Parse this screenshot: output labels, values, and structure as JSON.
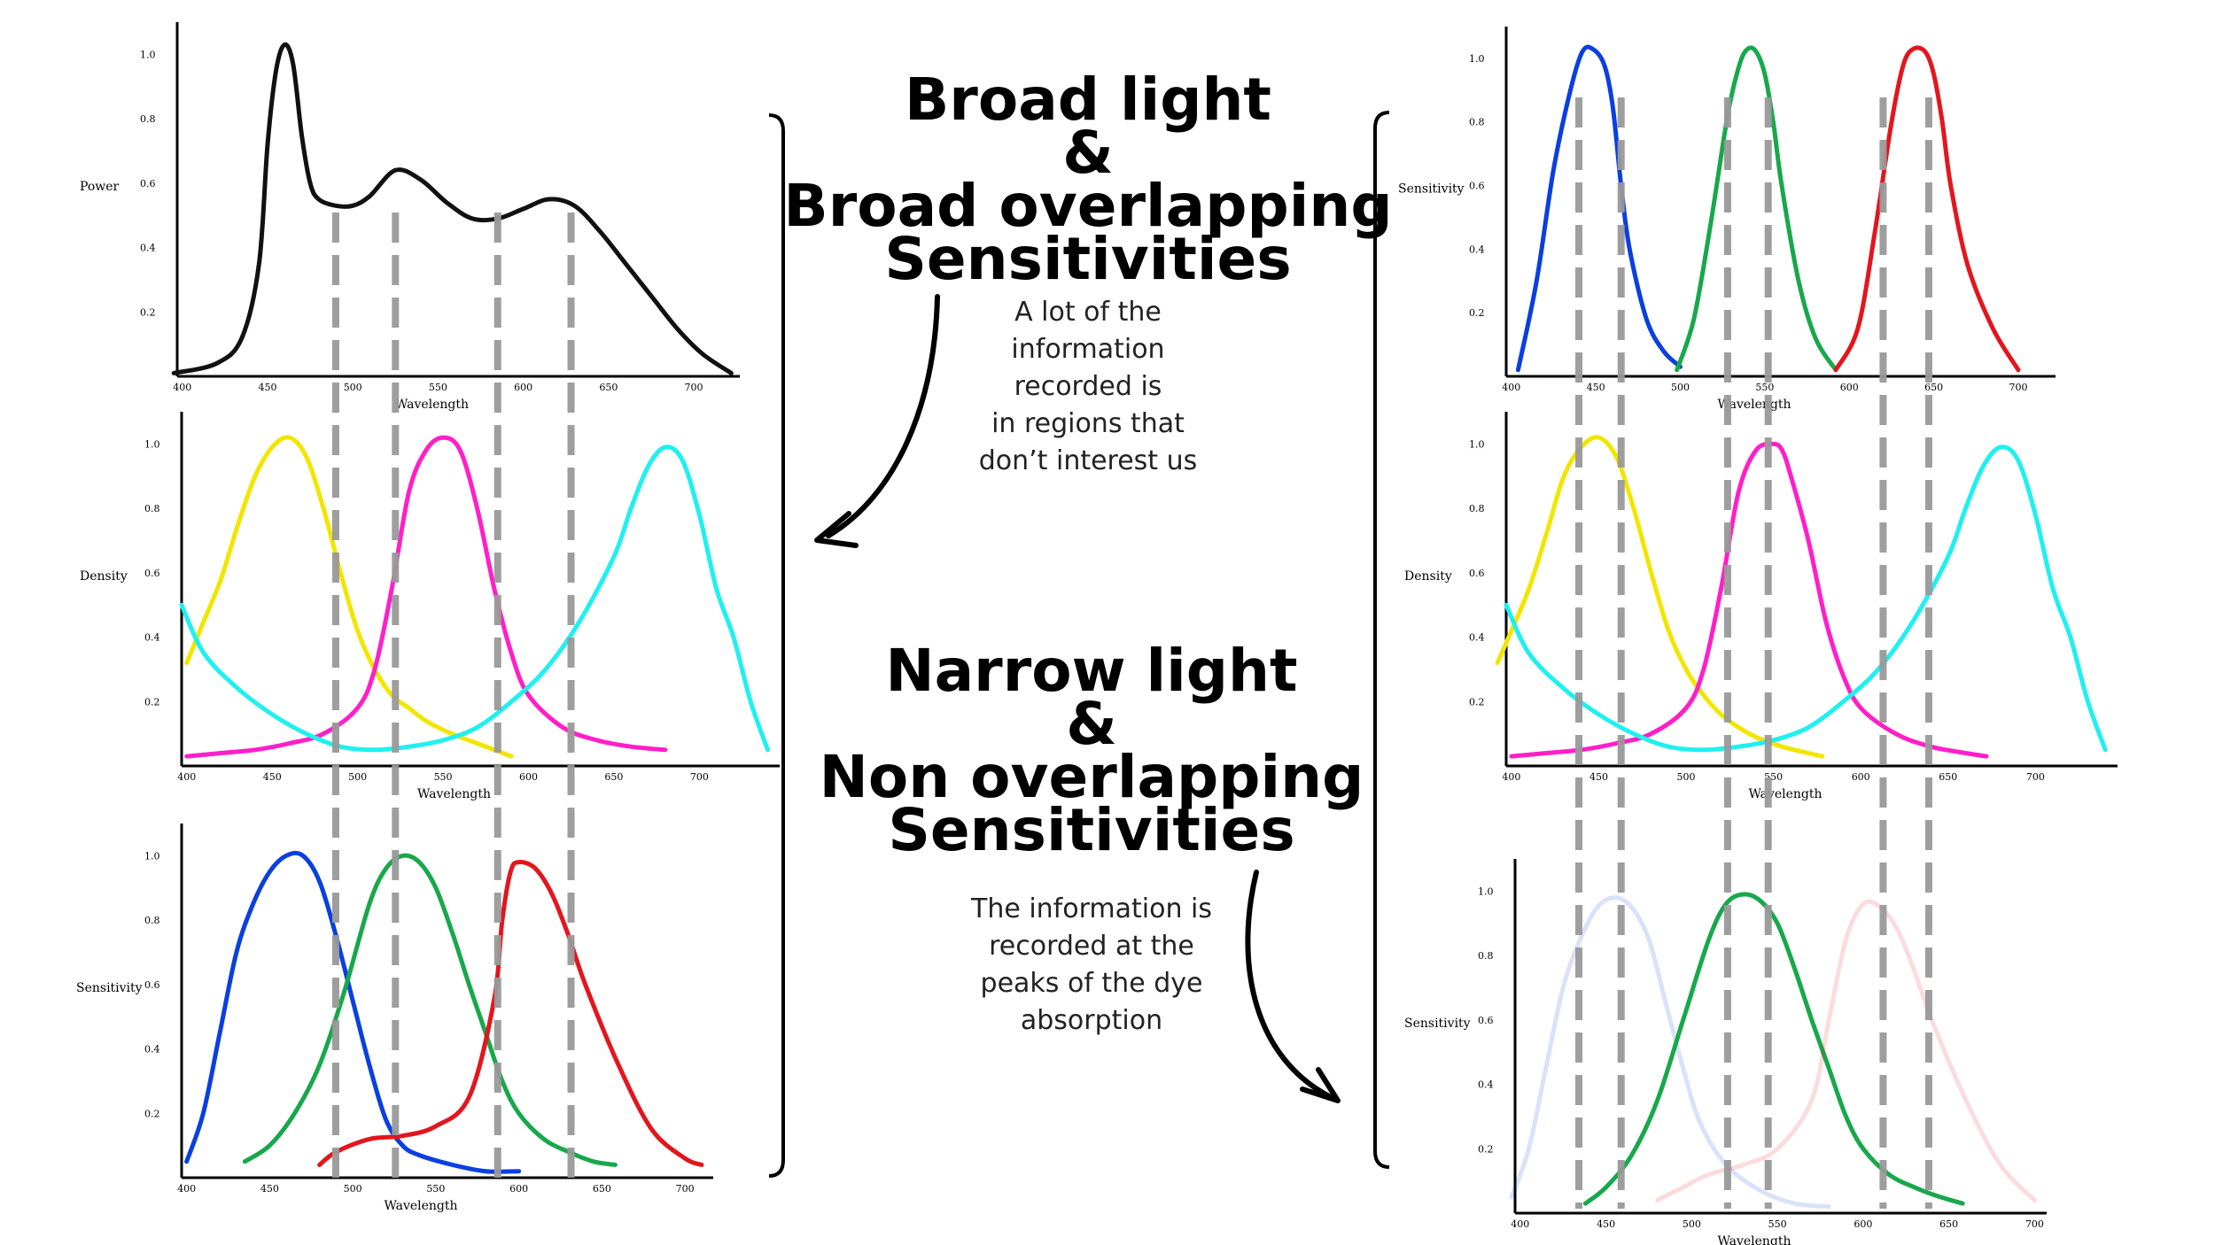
{
  "headings": {
    "broad_line1": "Broad light",
    "broad_line2": "&",
    "broad_line3": "Broad overlapping",
    "broad_line4": "Sensitivities",
    "narrow_line1": "Narrow light",
    "narrow_line2": "&",
    "narrow_line3": "Non overlapping",
    "narrow_line4": "Sensitivities"
  },
  "notes": {
    "broad": [
      "A lot of the",
      "information",
      "recorded is",
      "in regions that",
      "don’t interest us"
    ],
    "narrow": [
      "The information is",
      "recorded at the",
      "peaks of the dye",
      "absorption"
    ]
  },
  "colors": {
    "guide": "#999999",
    "yellow": "#f2e600",
    "magenta": "#ff1fc8",
    "cyan": "#1ff0f0",
    "blue": "#0a3fe0",
    "green": "#18a84c",
    "red": "#e3161d",
    "black": "#111111"
  },
  "chart_data": [
    {
      "id": "left-power",
      "type": "line",
      "ylabel": "Power",
      "xlabel": "Wavelength",
      "xticks": [
        400,
        450,
        500,
        550,
        600,
        650,
        700
      ],
      "yticks": [
        0.2,
        0.4,
        0.6,
        0.8,
        1.0
      ],
      "xlim": [
        397,
        727
      ],
      "ylim": [
        0,
        1.1
      ],
      "guides": [
        490,
        525,
        585,
        628
      ],
      "series": [
        {
          "color": "black",
          "x": [
            395,
            420,
            435,
            445,
            450,
            455,
            460,
            465,
            470,
            475,
            480,
            490,
            500,
            510,
            525,
            540,
            555,
            570,
            585,
            600,
            615,
            630,
            645,
            660,
            675,
            690,
            705,
            722
          ],
          "y": [
            0.01,
            0.04,
            0.12,
            0.35,
            0.72,
            0.95,
            1.03,
            0.97,
            0.75,
            0.6,
            0.55,
            0.53,
            0.53,
            0.56,
            0.64,
            0.61,
            0.54,
            0.49,
            0.49,
            0.52,
            0.55,
            0.53,
            0.45,
            0.35,
            0.25,
            0.15,
            0.07,
            0.01
          ]
        }
      ]
    },
    {
      "id": "left-density",
      "type": "line",
      "ylabel": "Density",
      "xlabel": "Wavelength",
      "xticks": [
        400,
        450,
        500,
        550,
        600,
        650,
        700
      ],
      "yticks": [
        0.2,
        0.4,
        0.6,
        0.8,
        1.0
      ],
      "xlim": [
        397,
        747
      ],
      "ylim": [
        0,
        1.1
      ],
      "guides": [
        490,
        525,
        585,
        628
      ],
      "series": [
        {
          "color": "yellow",
          "x": [
            400,
            410,
            420,
            430,
            440,
            450,
            460,
            470,
            480,
            490,
            500,
            510,
            520,
            530,
            540,
            555,
            570,
            585,
            590
          ],
          "y": [
            0.32,
            0.45,
            0.58,
            0.75,
            0.9,
            0.99,
            1.02,
            0.96,
            0.8,
            0.6,
            0.42,
            0.3,
            0.22,
            0.18,
            0.14,
            0.1,
            0.07,
            0.04,
            0.03
          ]
        },
        {
          "color": "magenta",
          "x": [
            400,
            420,
            440,
            460,
            480,
            500,
            510,
            520,
            530,
            540,
            550,
            560,
            570,
            580,
            590,
            600,
            620,
            640,
            660,
            680
          ],
          "y": [
            0.03,
            0.04,
            0.05,
            0.07,
            0.1,
            0.18,
            0.3,
            0.55,
            0.85,
            0.98,
            1.02,
            0.98,
            0.8,
            0.55,
            0.35,
            0.22,
            0.12,
            0.08,
            0.06,
            0.05
          ]
        },
        {
          "color": "cyan",
          "x": [
            397,
            410,
            430,
            450,
            470,
            490,
            510,
            530,
            550,
            570,
            590,
            610,
            630,
            650,
            660,
            670,
            680,
            690,
            700,
            710,
            720,
            730,
            740
          ],
          "y": [
            0.5,
            0.35,
            0.24,
            0.16,
            0.1,
            0.06,
            0.05,
            0.06,
            0.08,
            0.12,
            0.2,
            0.3,
            0.45,
            0.65,
            0.8,
            0.93,
            0.99,
            0.95,
            0.78,
            0.55,
            0.4,
            0.2,
            0.05
          ]
        }
      ]
    },
    {
      "id": "left-sensitivity",
      "type": "line",
      "ylabel": "Sensitivity",
      "xlabel": "Wavelength",
      "xticks": [
        400,
        450,
        500,
        550,
        600,
        650,
        700
      ],
      "yticks": [
        0.2,
        0.4,
        0.6,
        0.8,
        1.0
      ],
      "xlim": [
        397,
        717
      ],
      "ylim": [
        0,
        1.1
      ],
      "guides": [
        490,
        525,
        585,
        628
      ],
      "series": [
        {
          "color": "blue",
          "x": [
            400,
            410,
            420,
            430,
            440,
            450,
            460,
            470,
            480,
            490,
            500,
            510,
            520,
            530,
            540,
            560,
            580,
            600
          ],
          "y": [
            0.05,
            0.2,
            0.45,
            0.7,
            0.85,
            0.95,
            1.0,
            1.0,
            0.92,
            0.75,
            0.55,
            0.35,
            0.18,
            0.1,
            0.07,
            0.04,
            0.02,
            0.02
          ]
        },
        {
          "color": "green",
          "x": [
            435,
            450,
            465,
            480,
            495,
            510,
            520,
            530,
            540,
            550,
            560,
            570,
            580,
            590,
            600,
            615,
            630,
            645,
            658
          ],
          "y": [
            0.05,
            0.1,
            0.2,
            0.35,
            0.58,
            0.85,
            0.96,
            1.0,
            0.98,
            0.9,
            0.76,
            0.6,
            0.45,
            0.3,
            0.2,
            0.12,
            0.08,
            0.05,
            0.04
          ]
        },
        {
          "color": "red",
          "x": [
            480,
            490,
            510,
            530,
            550,
            570,
            585,
            590,
            595,
            600,
            610,
            620,
            630,
            640,
            660,
            680,
            700,
            710
          ],
          "y": [
            0.04,
            0.08,
            0.12,
            0.13,
            0.16,
            0.25,
            0.55,
            0.8,
            0.95,
            0.98,
            0.96,
            0.88,
            0.75,
            0.6,
            0.35,
            0.15,
            0.06,
            0.04
          ]
        }
      ]
    },
    {
      "id": "right-sensitivity-top",
      "type": "line",
      "ylabel": "Sensitivity",
      "xlabel": "Wavelength",
      "xticks": [
        400,
        450,
        500,
        550,
        600,
        650,
        700
      ],
      "yticks": [
        0.2,
        0.4,
        0.6,
        0.8,
        1.0
      ],
      "xlim": [
        397,
        722
      ],
      "ylim": [
        0,
        1.1
      ],
      "guides": [
        440,
        465,
        528,
        552,
        620,
        647
      ],
      "series": [
        {
          "color": "blue",
          "x": [
            404,
            415,
            425,
            435,
            442,
            448,
            455,
            460,
            465,
            470,
            480,
            490,
            500
          ],
          "y": [
            0.02,
            0.3,
            0.65,
            0.9,
            1.02,
            1.03,
            0.98,
            0.85,
            0.6,
            0.4,
            0.18,
            0.08,
            0.03
          ]
        },
        {
          "color": "green",
          "x": [
            498,
            508,
            518,
            528,
            535,
            540,
            545,
            550,
            555,
            560,
            570,
            580,
            592
          ],
          "y": [
            0.02,
            0.18,
            0.48,
            0.82,
            0.98,
            1.03,
            1.02,
            0.95,
            0.8,
            0.6,
            0.3,
            0.12,
            0.02
          ]
        },
        {
          "color": "red",
          "x": [
            592,
            605,
            615,
            625,
            632,
            638,
            645,
            650,
            655,
            660,
            670,
            685,
            700
          ],
          "y": [
            0.02,
            0.15,
            0.45,
            0.8,
            0.98,
            1.03,
            1.02,
            0.95,
            0.8,
            0.6,
            0.35,
            0.15,
            0.02
          ]
        }
      ]
    },
    {
      "id": "right-density",
      "type": "line",
      "ylabel": "Density",
      "xlabel": "Wavelength",
      "xticks": [
        400,
        450,
        500,
        550,
        600,
        650,
        700
      ],
      "yticks": [
        0.2,
        0.4,
        0.6,
        0.8,
        1.0
      ],
      "xlim": [
        397,
        747
      ],
      "ylim": [
        0,
        1.1
      ],
      "guides": [
        440,
        465,
        528,
        552,
        620,
        647
      ],
      "series": [
        {
          "color": "yellow",
          "x": [
            392,
            400,
            410,
            420,
            430,
            440,
            450,
            460,
            470,
            480,
            490,
            500,
            510,
            520,
            530,
            540,
            555,
            570,
            578
          ],
          "y": [
            0.32,
            0.42,
            0.55,
            0.72,
            0.9,
            0.99,
            1.02,
            0.96,
            0.8,
            0.6,
            0.42,
            0.3,
            0.22,
            0.16,
            0.12,
            0.09,
            0.06,
            0.04,
            0.03
          ]
        },
        {
          "color": "magenta",
          "x": [
            400,
            420,
            440,
            460,
            480,
            500,
            510,
            520,
            530,
            540,
            550,
            555,
            560,
            570,
            580,
            590,
            600,
            620,
            640,
            660,
            672
          ],
          "y": [
            0.03,
            0.04,
            0.05,
            0.07,
            0.1,
            0.18,
            0.3,
            0.55,
            0.85,
            0.98,
            1.0,
            0.98,
            0.9,
            0.7,
            0.45,
            0.28,
            0.18,
            0.1,
            0.06,
            0.04,
            0.03
          ]
        },
        {
          "color": "cyan",
          "x": [
            397,
            410,
            430,
            450,
            470,
            490,
            510,
            530,
            550,
            570,
            590,
            610,
            630,
            650,
            660,
            670,
            680,
            690,
            700,
            710,
            720,
            730,
            740
          ],
          "y": [
            0.5,
            0.35,
            0.24,
            0.16,
            0.1,
            0.06,
            0.05,
            0.06,
            0.08,
            0.12,
            0.2,
            0.3,
            0.45,
            0.65,
            0.8,
            0.93,
            0.99,
            0.95,
            0.78,
            0.55,
            0.4,
            0.2,
            0.05
          ]
        }
      ]
    },
    {
      "id": "right-sensitivity-bottom",
      "type": "line",
      "ylabel": "Sensitivity",
      "xlabel": "Wavelength",
      "xticks": [
        400,
        450,
        500,
        550,
        600,
        650,
        700
      ],
      "yticks": [
        0.2,
        0.4,
        0.6,
        0.8,
        1.0
      ],
      "xlim": [
        397,
        707
      ],
      "ylim": [
        0,
        1.1
      ],
      "guides": [
        440,
        465,
        528,
        552,
        620,
        647
      ],
      "series": [
        {
          "color": "blue",
          "faded": true,
          "x": [
            395,
            405,
            415,
            425,
            435,
            445,
            455,
            465,
            475,
            485,
            495,
            505,
            520,
            540,
            560,
            580
          ],
          "y": [
            0.05,
            0.2,
            0.45,
            0.7,
            0.85,
            0.95,
            0.98,
            0.95,
            0.85,
            0.65,
            0.45,
            0.28,
            0.15,
            0.07,
            0.03,
            0.02
          ]
        },
        {
          "color": "green",
          "x": [
            438,
            450,
            465,
            480,
            495,
            510,
            520,
            530,
            540,
            550,
            560,
            570,
            580,
            590,
            600,
            615,
            630,
            645,
            658
          ],
          "y": [
            0.03,
            0.08,
            0.18,
            0.35,
            0.6,
            0.85,
            0.96,
            0.99,
            0.97,
            0.9,
            0.76,
            0.6,
            0.45,
            0.3,
            0.2,
            0.12,
            0.08,
            0.05,
            0.03
          ]
        },
        {
          "color": "red",
          "faded": true,
          "x": [
            480,
            495,
            510,
            530,
            550,
            570,
            580,
            590,
            600,
            610,
            620,
            630,
            640,
            660,
            680,
            700
          ],
          "y": [
            0.04,
            0.08,
            0.12,
            0.15,
            0.2,
            0.35,
            0.6,
            0.85,
            0.96,
            0.95,
            0.88,
            0.75,
            0.6,
            0.35,
            0.15,
            0.04
          ]
        }
      ]
    }
  ]
}
